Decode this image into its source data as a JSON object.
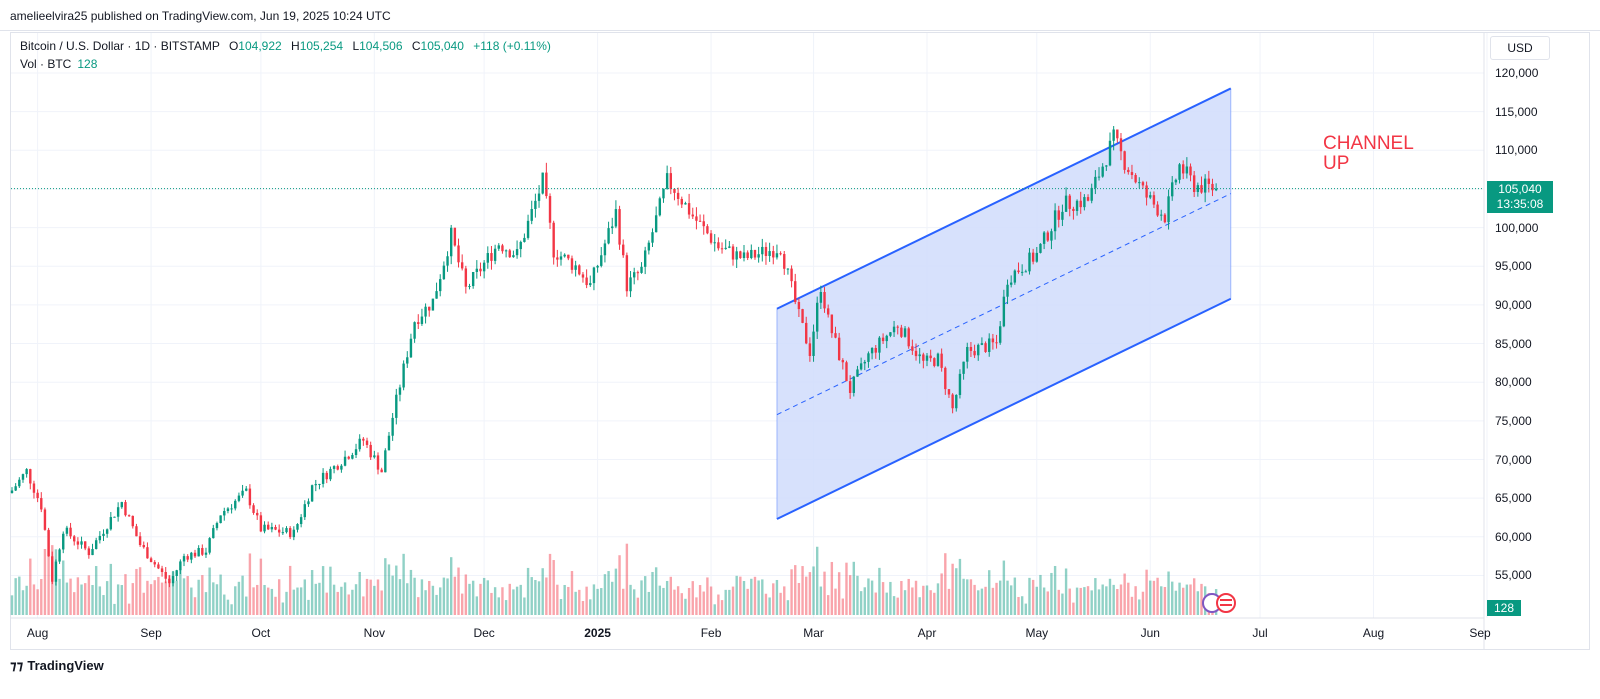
{
  "header": {
    "published": "amelieelvira25 published on TradingView.com, Jun 19, 2025 10:24 UTC"
  },
  "legend": {
    "symbol": "Bitcoin / U.S. Dollar · 1D · BITSTAMP",
    "o_label": "O",
    "o_value": "104,922",
    "h_label": "H",
    "h_value": "105,254",
    "l_label": "L",
    "l_value": "104,506",
    "c_label": "C",
    "c_value": "105,040",
    "change": "+118 (+0.11%)",
    "vol_label": "Vol · BTC",
    "vol_value": "128"
  },
  "currency": "USD",
  "price_badge": {
    "price": "105,040",
    "countdown": "13:35:08"
  },
  "volume_badge": "128",
  "annotation": {
    "line1": "CHANNEL",
    "line2": "UP"
  },
  "footer": {
    "brand": "TradingView"
  },
  "colors": {
    "up": "#089981",
    "down": "#f23645",
    "channel": "#2962ff",
    "channel_fill": "#d0dcfc"
  },
  "chart_data": {
    "type": "candlestick",
    "title": "Bitcoin / U.S. Dollar · 1D · BITSTAMP",
    "ylim": [
      50000,
      123000
    ],
    "y_ticks": [
      "120,000",
      "115,000",
      "110,000",
      "105,000",
      "100,000",
      "95,000",
      "90,000",
      "85,000",
      "80,000",
      "75,000",
      "70,000",
      "65,000",
      "60,000",
      "55,000"
    ],
    "x_ticks": [
      "Aug",
      "Sep",
      "Oct",
      "Nov",
      "Dec",
      "2025",
      "Feb",
      "Mar",
      "Apr",
      "May",
      "Jun",
      "Jul",
      "Aug",
      "Sep"
    ],
    "last_price": 105040,
    "price_path": [
      [
        "2024-07-25",
        66000
      ],
      [
        "2024-07-29",
        68500
      ],
      [
        "2024-08-02",
        64000
      ],
      [
        "2024-08-05",
        54500
      ],
      [
        "2024-08-08",
        61000
      ],
      [
        "2024-08-15",
        58000
      ],
      [
        "2024-08-24",
        64500
      ],
      [
        "2024-08-29",
        59000
      ],
      [
        "2024-09-06",
        54000
      ],
      [
        "2024-09-10",
        57500
      ],
      [
        "2024-09-16",
        58200
      ],
      [
        "2024-09-20",
        63000
      ],
      [
        "2024-09-27",
        65800
      ],
      [
        "2024-10-01",
        61000
      ],
      [
        "2024-10-10",
        60500
      ],
      [
        "2024-10-15",
        66500
      ],
      [
        "2024-10-21",
        69000
      ],
      [
        "2024-10-29",
        72500
      ],
      [
        "2024-11-03",
        68500
      ],
      [
        "2024-11-06",
        75500
      ],
      [
        "2024-11-12",
        88000
      ],
      [
        "2024-11-17",
        90500
      ],
      [
        "2024-11-22",
        99000
      ],
      [
        "2024-11-26",
        92000
      ],
      [
        "2024-12-05",
        98000
      ],
      [
        "2024-12-10",
        96500
      ],
      [
        "2024-12-17",
        106000
      ],
      [
        "2024-12-20",
        97000
      ],
      [
        "2024-12-26",
        95000
      ],
      [
        "2024-12-30",
        92500
      ],
      [
        "2025-01-06",
        102000
      ],
      [
        "2025-01-09",
        92500
      ],
      [
        "2025-01-13",
        94500
      ],
      [
        "2025-01-20",
        106000
      ],
      [
        "2025-01-22",
        105000
      ],
      [
        "2025-01-27",
        101500
      ],
      [
        "2025-02-03",
        97500
      ],
      [
        "2025-02-10",
        96000
      ],
      [
        "2025-02-20",
        97500
      ],
      [
        "2025-02-25",
        88500
      ],
      [
        "2025-02-28",
        84000
      ],
      [
        "2025-03-03",
        92500
      ],
      [
        "2025-03-05",
        88000
      ],
      [
        "2025-03-11",
        79000
      ],
      [
        "2025-03-16",
        83500
      ],
      [
        "2025-03-24",
        87500
      ],
      [
        "2025-03-31",
        82500
      ],
      [
        "2025-04-04",
        83000
      ],
      [
        "2025-04-08",
        76500
      ],
      [
        "2025-04-12",
        84000
      ],
      [
        "2025-04-20",
        85000
      ],
      [
        "2025-04-23",
        93500
      ],
      [
        "2025-05-01",
        96500
      ],
      [
        "2025-05-08",
        103000
      ],
      [
        "2025-05-15",
        103500
      ],
      [
        "2025-05-22",
        111500
      ],
      [
        "2025-05-25",
        108500
      ],
      [
        "2025-05-31",
        104000
      ],
      [
        "2025-06-05",
        101500
      ],
      [
        "2025-06-09",
        108000
      ],
      [
        "2025-06-13",
        105500
      ],
      [
        "2025-06-19",
        105040
      ]
    ],
    "channel": {
      "name": "CHANNEL UP",
      "start_date": "2025-02-19",
      "end_date": "2025-06-23",
      "upper": [
        89500,
        118000
      ],
      "middle": [
        75800,
        104400
      ],
      "lower": [
        62300,
        90800
      ]
    },
    "volume_series": "Vol · BTC",
    "last_volume": 128
  }
}
